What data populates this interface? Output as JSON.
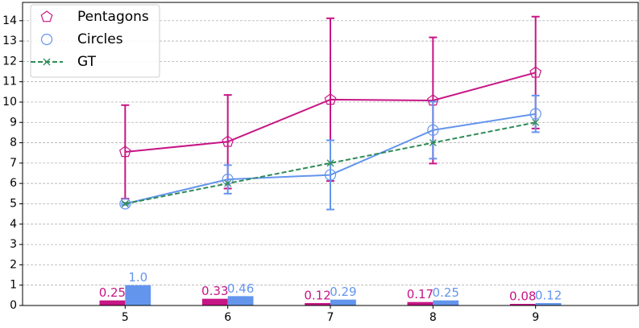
{
  "chart_data": {
    "type": "line",
    "x": [
      5,
      6,
      7,
      8,
      9
    ],
    "xlim": [
      4,
      10
    ],
    "xticks": [
      5,
      6,
      7,
      8,
      9
    ],
    "ylim": [
      0,
      14.9
    ],
    "yticks": [
      0,
      1,
      2,
      3,
      4,
      5,
      6,
      7,
      8,
      9,
      10,
      11,
      12,
      13,
      14
    ],
    "grid": true,
    "legend": "upper left",
    "series": [
      {
        "name": "Pentagons",
        "color": "#c71585",
        "marker": "pentagon",
        "values": [
          7.55,
          8.05,
          10.12,
          10.08,
          11.45
        ],
        "errors": [
          2.3,
          2.3,
          4.0,
          3.1,
          2.75
        ]
      },
      {
        "name": "Circles",
        "color": "#6495ed",
        "marker": "circle",
        "values": [
          5.0,
          6.2,
          6.42,
          8.62,
          9.42
        ],
        "errors": [
          0.05,
          0.7,
          1.7,
          1.4,
          0.9
        ]
      },
      {
        "name": "GT",
        "color": "#2e8b57",
        "marker": "x",
        "dashed": true,
        "values": [
          5,
          6,
          7,
          8,
          9
        ]
      }
    ],
    "bars": [
      {
        "color": "#c71585",
        "values": [
          0.25,
          0.33,
          0.12,
          0.17,
          0.08
        ]
      },
      {
        "color": "#6495ed",
        "values": [
          1.0,
          0.46,
          0.29,
          0.25,
          0.12
        ],
        "value_labels": [
          "1.0",
          "0.46",
          "0.29",
          "0.25",
          "0.12"
        ]
      }
    ]
  }
}
